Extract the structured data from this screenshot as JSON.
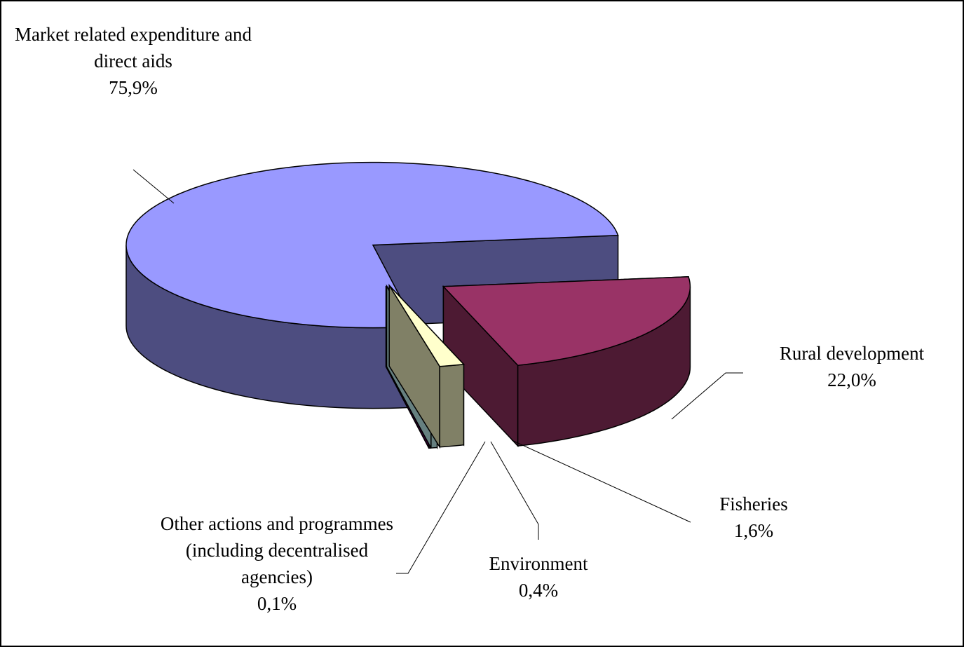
{
  "chart_data": {
    "type": "pie",
    "categories": [
      "Market related expenditure and direct aids",
      "Rural development",
      "Fisheries",
      "Environment",
      "Other actions and programmes (including decentralised agencies)"
    ],
    "values": [
      75.9,
      22.0,
      1.6,
      0.4,
      0.1
    ],
    "value_labels": [
      "75,9%",
      "22,0%",
      "1,6%",
      "0,4%",
      "0,1%"
    ],
    "colors": [
      "#9999ff",
      "#993366",
      "#ffffcc",
      "#ccffff",
      "#660066"
    ]
  }
}
